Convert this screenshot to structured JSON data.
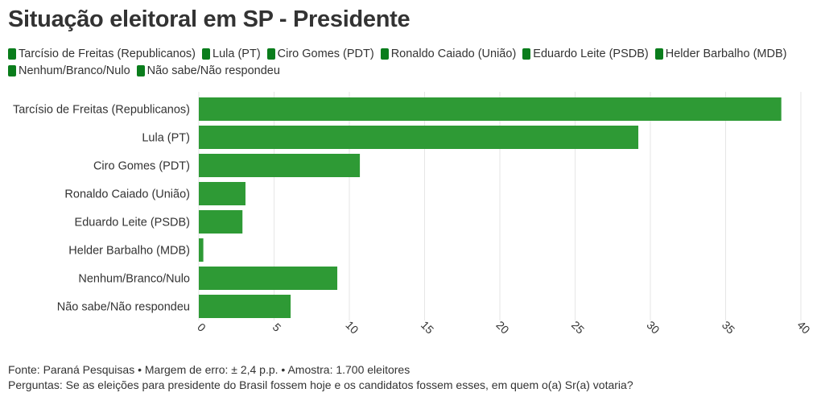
{
  "title": "Situação eleitoral em SP - Presidente",
  "colors": {
    "bar": "#2e9a35",
    "legend": "#0a7d1c",
    "grid": "#e6e6e6",
    "text": "#333333"
  },
  "legend": [
    "Tarcísio de Freitas (Republicanos)",
    "Lula (PT)",
    "Ciro Gomes (PDT)",
    "Ronaldo Caiado (União)",
    "Eduardo Leite (PSDB)",
    "Helder Barbalho (MDB)",
    "Nenhum/Branco/Nulo",
    "Não sabe/Não respondeu"
  ],
  "chart_data": {
    "type": "bar",
    "orientation": "horizontal",
    "categories": [
      "Tarcísio de Freitas (Republicanos)",
      "Lula (PT)",
      "Ciro Gomes (PDT)",
      "Ronaldo Caiado (União)",
      "Eduardo Leite (PSDB)",
      "Helder Barbalho (MDB)",
      "Nenhum/Branco/Nulo",
      "Não sabe/Não respondeu"
    ],
    "values": [
      38.7,
      29.2,
      10.7,
      3.1,
      2.9,
      0.3,
      9.2,
      6.1
    ],
    "xlim": [
      0,
      40
    ],
    "xticks": [
      0,
      5,
      10,
      15,
      20,
      25,
      30,
      35,
      40
    ],
    "grid": true,
    "title": "Situação eleitoral em SP - Presidente",
    "xlabel": "",
    "ylabel": ""
  },
  "footer": {
    "source": "Fonte: Paraná Pesquisas • Margem de erro: ± 2,4 p.p. • Amostra: 1.700 eleitores",
    "question": "Perguntas: Se as eleições para presidente do Brasil fossem hoje e os candidatos fossem esses, em quem o(a) Sr(a) votaria?"
  }
}
